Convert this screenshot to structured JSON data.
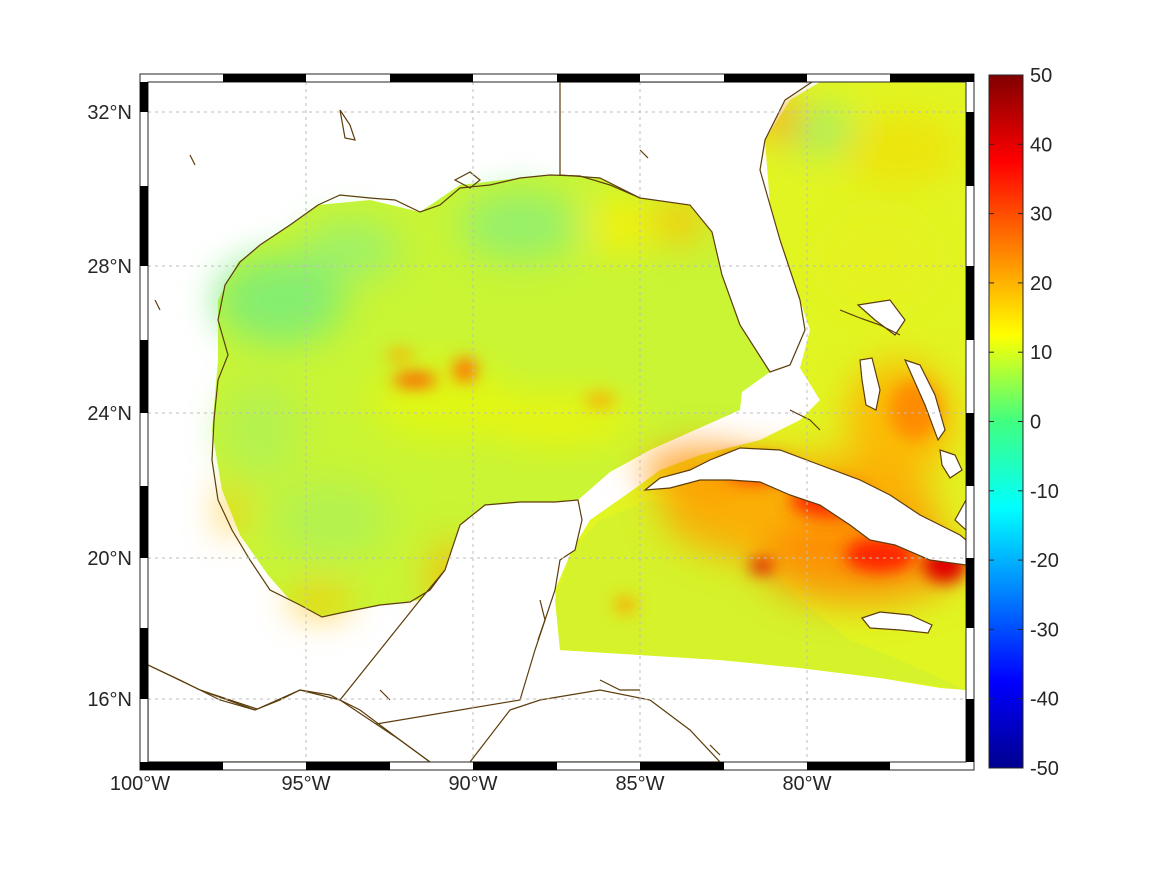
{
  "map": {
    "type": "heatmap",
    "lon_range": [
      -100,
      -75
    ],
    "lat_range": [
      14,
      33
    ],
    "x_ticks": [
      {
        "lon": -100,
        "label": "100°W"
      },
      {
        "lon": -95,
        "label": "95°W"
      },
      {
        "lon": -90,
        "label": "90°W"
      },
      {
        "lon": -85,
        "label": "85°W"
      },
      {
        "lon": -80,
        "label": "80°W"
      }
    ],
    "y_ticks": [
      {
        "lat": 16,
        "label": "16°N"
      },
      {
        "lat": 20,
        "label": "20°N"
      },
      {
        "lat": 24,
        "label": "24°N"
      },
      {
        "lat": 28,
        "label": "28°N"
      },
      {
        "lat": 32,
        "label": "32°N"
      }
    ],
    "grid": true,
    "colormap": "jet",
    "coastline_color": "#5c3d0c",
    "land_color": "#ffffff"
  },
  "colorbar": {
    "range": [
      -50,
      50
    ],
    "placement": "right",
    "ticks": [
      {
        "value": 50,
        "label": "50"
      },
      {
        "value": 40,
        "label": "40"
      },
      {
        "value": 30,
        "label": "30"
      },
      {
        "value": 20,
        "label": "20"
      },
      {
        "value": 10,
        "label": "10"
      },
      {
        "value": 0,
        "label": "0"
      },
      {
        "value": -10,
        "label": "-10"
      },
      {
        "value": -20,
        "label": "-20"
      },
      {
        "value": -30,
        "label": "-30"
      },
      {
        "value": -40,
        "label": "-40"
      },
      {
        "value": -50,
        "label": "-50"
      }
    ]
  }
}
